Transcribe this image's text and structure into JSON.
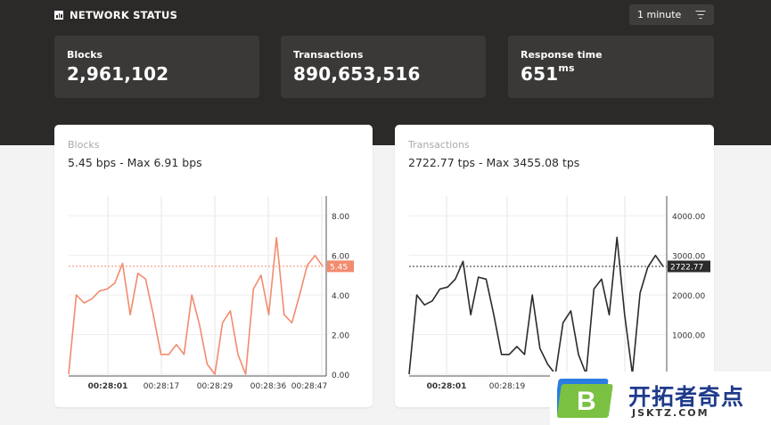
{
  "header": {
    "title": "NETWORK STATUS",
    "period_label": "1 minute"
  },
  "stats": [
    {
      "label": "Blocks",
      "value": "2,961,102",
      "unit": ""
    },
    {
      "label": "Transactions",
      "value": "890,653,516",
      "unit": ""
    },
    {
      "label": "Response time",
      "value": "651",
      "unit": "ms"
    }
  ],
  "charts": [
    {
      "title": "Blocks",
      "subtitle": "5.45 bps - Max 6.91 bps",
      "color": "#f28b6e",
      "current": 5.45,
      "current_label": "5.45",
      "ymax": 9,
      "yticks": [
        "8.00",
        "6.00",
        "4.00",
        "2.00",
        "0.00"
      ],
      "ytick_values": [
        8,
        6,
        4,
        2,
        0
      ],
      "xticks": [
        "00:28:01",
        "00:28:17",
        "00:28:29",
        "00:28:36",
        "00:28:47"
      ],
      "values": [
        0,
        4,
        3.6,
        3.8,
        4.2,
        4.3,
        4.6,
        5.6,
        3,
        5.1,
        4.8,
        3,
        1,
        1,
        1.5,
        1,
        4,
        2.5,
        0.5,
        0,
        2.6,
        3.2,
        1,
        0,
        4.3,
        5,
        3,
        6.9,
        3,
        2.6,
        4,
        5.5,
        6,
        5.45
      ]
    },
    {
      "title": "Transactions",
      "subtitle": "2722.77 tps - Max 3455.08 tps",
      "color": "#2b2b2b",
      "current": 2722.77,
      "current_label": "2722.77",
      "ymax": 4500,
      "yticks": [
        "4000.00",
        "3000.00",
        "2000.00",
        "1000.00",
        "0.00"
      ],
      "ytick_values": [
        4000,
        3000,
        2000,
        1000,
        0
      ],
      "xticks": [
        "00:28:01",
        "00:28:19"
      ],
      "values": [
        0,
        2000,
        1750,
        1850,
        2150,
        2200,
        2400,
        2850,
        1500,
        2450,
        2400,
        1500,
        500,
        500,
        700,
        500,
        2000,
        650,
        250,
        0,
        1300,
        1600,
        500,
        0,
        2150,
        2400,
        1500,
        3455,
        1500,
        0,
        2050,
        2700,
        3000,
        2722.77
      ]
    }
  ],
  "watermark": {
    "brand": "开拓者奇点",
    "url": "JSKTZ.COM",
    "letter": "B"
  }
}
